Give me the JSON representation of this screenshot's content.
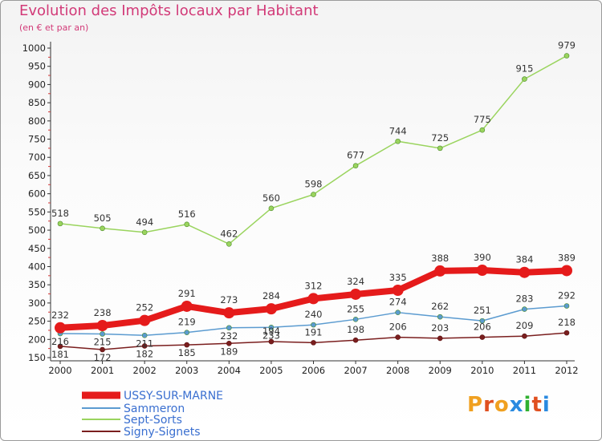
{
  "title": "Evolution des Impôts locaux par Habitant",
  "subtitle": "(en € et par an)",
  "logo": {
    "text": "Proxiti",
    "letters": [
      "P",
      "r",
      "o",
      "x",
      "i",
      "t",
      "i"
    ],
    "colors": [
      "#f0a020",
      "#e05020",
      "#f0a020",
      "#2a8ae0",
      "#30b030",
      "#e05020",
      "#2a8ae0"
    ]
  },
  "chart_data": {
    "type": "line",
    "title": "Evolution des Impôts locaux par Habitant",
    "subtitle": "(en € et par an)",
    "x": [
      "2000",
      "2001",
      "2002",
      "2003",
      "2004",
      "2005",
      "2006",
      "2007",
      "2008",
      "2009",
      "2010",
      "2011",
      "2012"
    ],
    "yticks": [
      "150",
      "200",
      "250",
      "300",
      "350",
      "400",
      "450",
      "500",
      "550",
      "600",
      "650",
      "700",
      "750",
      "800",
      "850",
      "900",
      "950",
      "1000"
    ],
    "ylim": [
      150,
      1000
    ],
    "grid": false,
    "legend_position": "bottom-left",
    "series": [
      {
        "name": "USSY-SUR-MARNE",
        "color": "#e51b1b",
        "width": 8,
        "marker": 7,
        "labels": "above",
        "values": [
          232,
          238,
          252,
          291,
          273,
          284,
          312,
          324,
          335,
          388,
          390,
          384,
          389
        ]
      },
      {
        "name": "Sammeron",
        "color": "#5b9bd0",
        "width": 1.5,
        "marker": 3,
        "labels": "mixed",
        "values": [
          216,
          215,
          211,
          219,
          232,
          233,
          240,
          255,
          274,
          262,
          251,
          283,
          292
        ]
      },
      {
        "name": "Sept-Sorts",
        "color": "#9ad45e",
        "width": 1.5,
        "marker": 3,
        "labels": "above",
        "values": [
          518,
          505,
          494,
          516,
          462,
          560,
          598,
          677,
          744,
          725,
          775,
          915,
          979
        ]
      },
      {
        "name": "Signy-Signets",
        "color": "#7a1e1e",
        "width": 1.5,
        "marker": 3,
        "labels": "above",
        "values": [
          181,
          172,
          182,
          185,
          189,
          194,
          191,
          198,
          206,
          203,
          206,
          209,
          218
        ]
      }
    ]
  }
}
